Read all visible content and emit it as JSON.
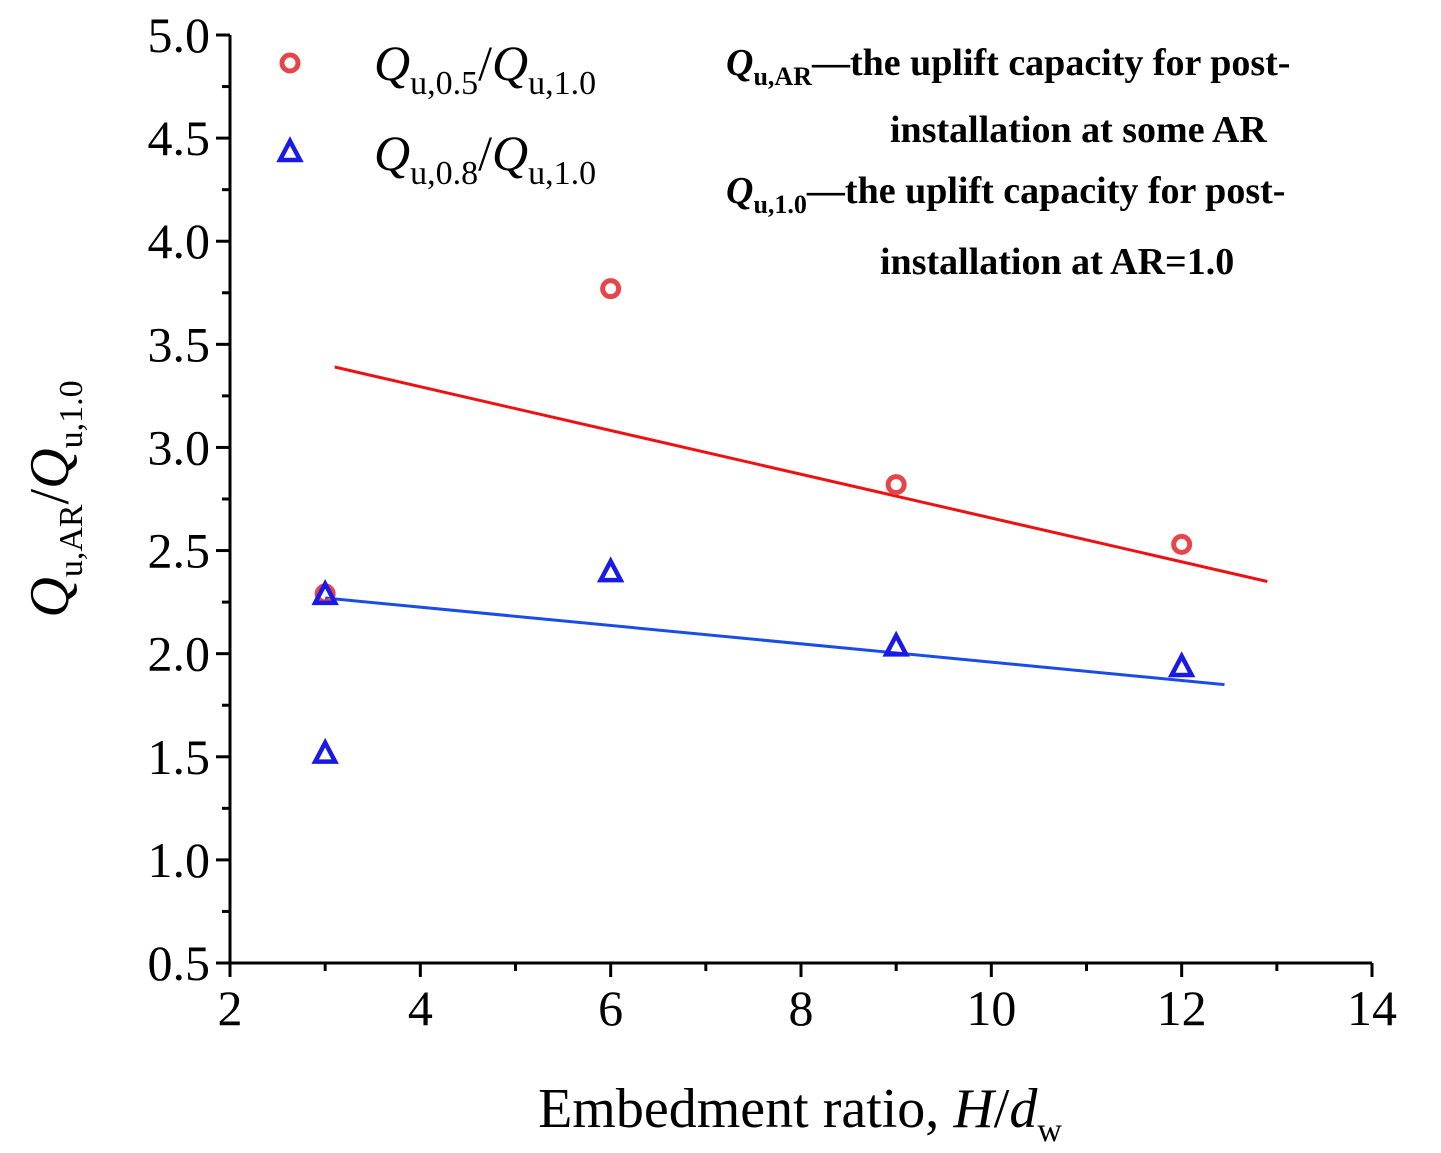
{
  "chart_data": {
    "type": "scatter",
    "title": "",
    "xlabel": {
      "prefix": "Embedment ratio, ",
      "var": "H",
      "slash": "/",
      "var2": "d",
      "var2_sub": "w"
    },
    "ylabel": {
      "var": "Q",
      "sub": "u,AR",
      "slash": "/",
      "var2": "Q",
      "var2_sub": "u,1.0"
    },
    "xlim": [
      2,
      14
    ],
    "ylim": [
      0.5,
      5.0
    ],
    "xticks": [
      2,
      4,
      6,
      8,
      10,
      12,
      14
    ],
    "yticks": [
      0.5,
      1.0,
      1.5,
      2.0,
      2.5,
      3.0,
      3.5,
      4.0,
      4.5,
      5.0
    ],
    "ytick_labels": [
      "0.5",
      "1.0",
      "1.5",
      "2.0",
      "2.5",
      "3.0",
      "3.5",
      "4.0",
      "4.5",
      "5.0"
    ],
    "legend_position": "top-left",
    "series": [
      {
        "name": "Q_u,0.5/Q_u,1.0",
        "legend": {
          "var": "Q",
          "sub": "u,0.5",
          "slash": "/",
          "var2": "Q",
          "var2_sub": "u,1.0"
        },
        "marker": "circle",
        "color": "#e8454a",
        "x": [
          3,
          6,
          9,
          12
        ],
        "y": [
          2.29,
          3.77,
          2.82,
          2.53
        ],
        "fit": {
          "x": [
            3.1,
            12.9
          ],
          "y": [
            3.39,
            2.35
          ],
          "color": "#ee1111"
        }
      },
      {
        "name": "Q_u,0.8/Q_u,1.0",
        "legend": {
          "var": "Q",
          "sub": "u,0.8",
          "slash": "/",
          "var2": "Q",
          "var2_sub": "u,1.0"
        },
        "marker": "triangle",
        "color": "#1a1ae6",
        "x": [
          3,
          3,
          6,
          9,
          12
        ],
        "y": [
          1.52,
          2.29,
          2.4,
          2.04,
          1.94
        ],
        "fit": {
          "x": [
            3.0,
            12.45
          ],
          "y": [
            2.27,
            1.85
          ],
          "color": "#1a4de6"
        }
      }
    ],
    "annotations": [
      {
        "symbol": "Q",
        "symbol_sub": "u,AR",
        "line1": "—the uplift capacity for post-",
        "line2": "installation at some AR"
      },
      {
        "symbol": "Q",
        "symbol_sub": "u,1.0",
        "line1": "—the uplift capacity for post-",
        "line2": "installation at AR=1.0"
      }
    ]
  }
}
